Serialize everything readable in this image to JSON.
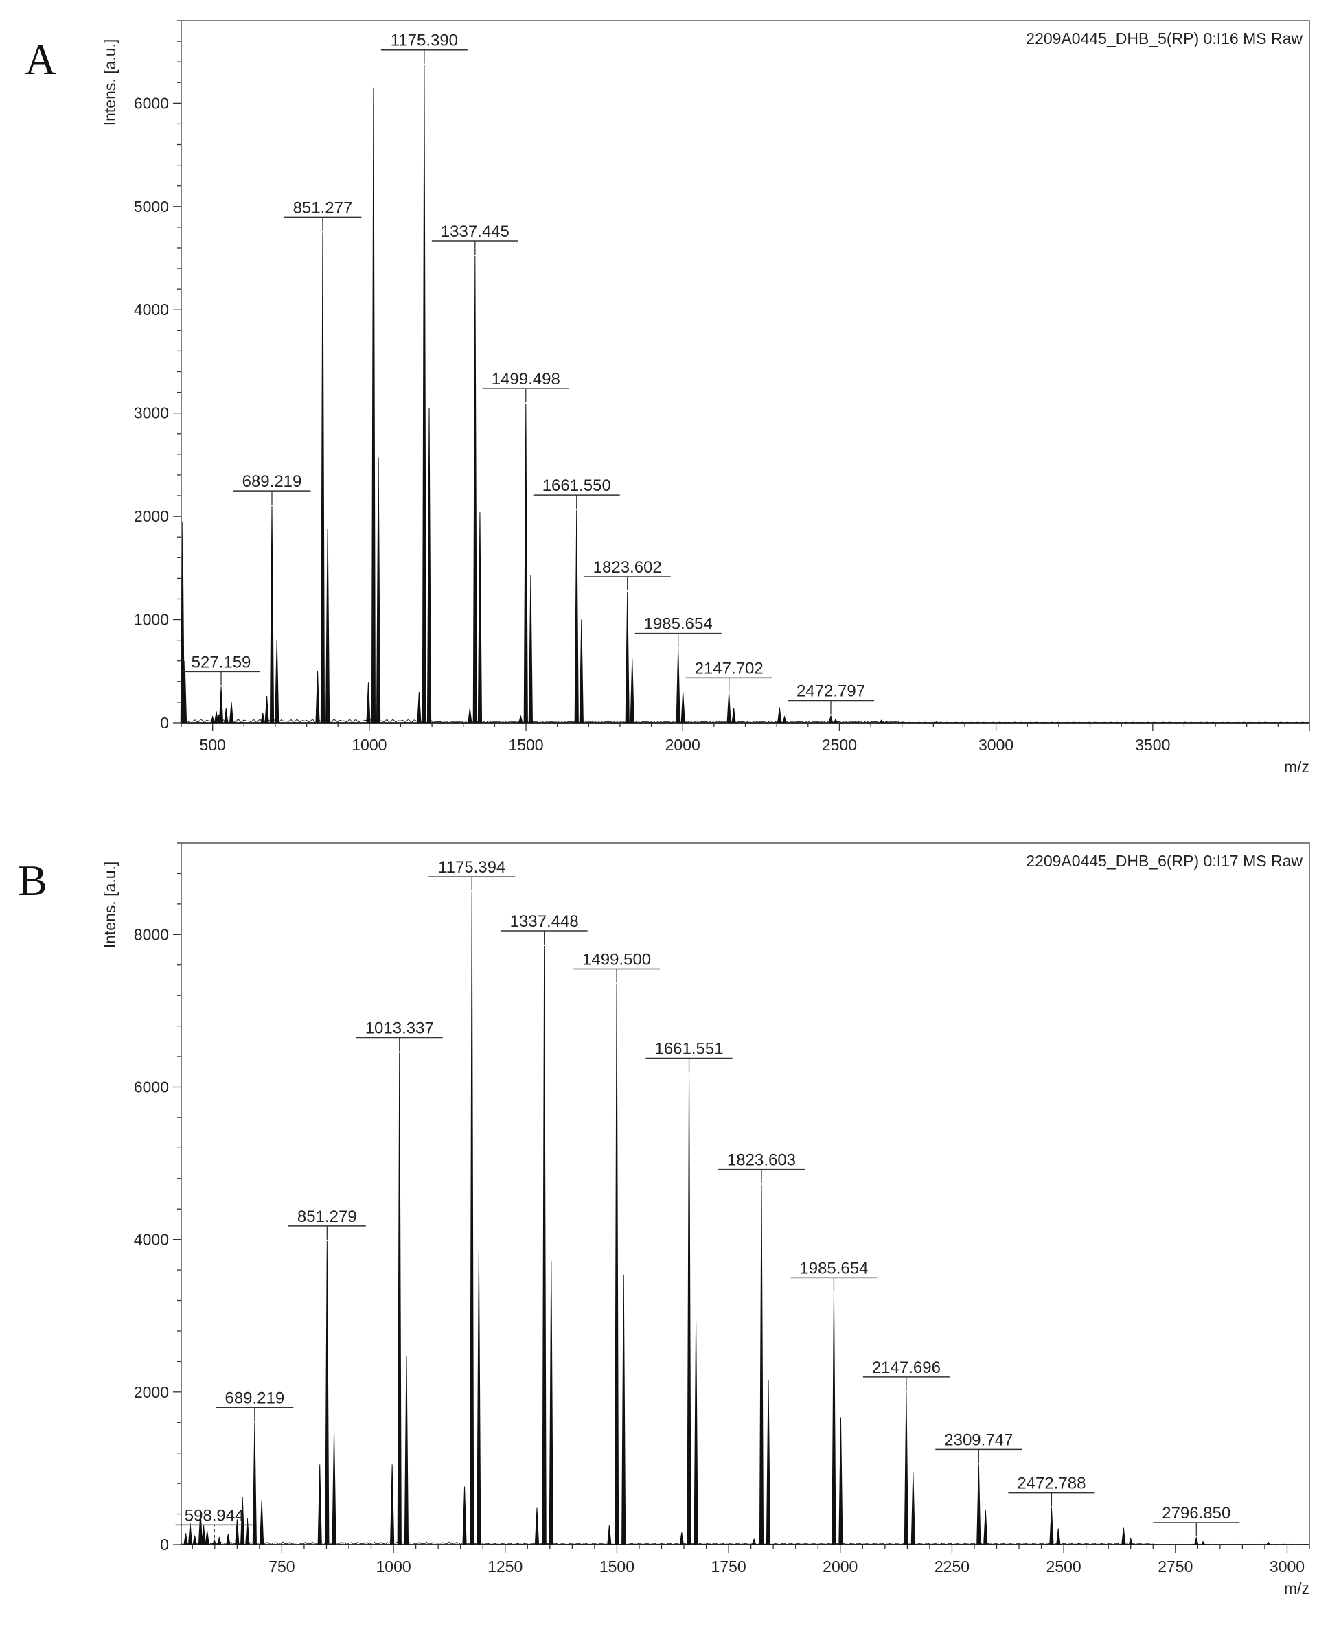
{
  "chart_data": [
    {
      "type": "line",
      "panel_label": "A",
      "source_label": "2209A0445_DHB_5(RP) 0:I16 MS Raw",
      "ylabel": "Intens. [a.u.]",
      "xlabel": "m/z",
      "xlim": [
        400,
        4000
      ],
      "ylim": [
        0,
        6800
      ],
      "xticks": [
        500,
        1000,
        1500,
        2000,
        2500,
        3000,
        3500
      ],
      "yticks": [
        0,
        1000,
        2000,
        3000,
        4000,
        5000,
        6000
      ],
      "peaks": [
        {
          "x": 404,
          "y": 1950
        },
        {
          "x": 411,
          "y": 600
        },
        {
          "x": 500,
          "y": 60
        },
        {
          "x": 512,
          "y": 110
        },
        {
          "x": 520,
          "y": 80
        },
        {
          "x": 527.159,
          "y": 350
        },
        {
          "x": 543,
          "y": 140
        },
        {
          "x": 560,
          "y": 200
        },
        {
          "x": 660,
          "y": 100
        },
        {
          "x": 673,
          "y": 260
        },
        {
          "x": 689.219,
          "y": 2100
        },
        {
          "x": 705,
          "y": 800
        },
        {
          "x": 835,
          "y": 500
        },
        {
          "x": 851.277,
          "y": 4750
        },
        {
          "x": 867,
          "y": 1880
        },
        {
          "x": 997,
          "y": 390
        },
        {
          "x": 1013.33,
          "y": 6150
        },
        {
          "x": 1029,
          "y": 2570
        },
        {
          "x": 1159,
          "y": 300
        },
        {
          "x": 1175.39,
          "y": 6370
        },
        {
          "x": 1191,
          "y": 3050
        },
        {
          "x": 1321,
          "y": 140
        },
        {
          "x": 1337.445,
          "y": 4520
        },
        {
          "x": 1353,
          "y": 2040
        },
        {
          "x": 1483,
          "y": 70
        },
        {
          "x": 1499.498,
          "y": 3090
        },
        {
          "x": 1515,
          "y": 1430
        },
        {
          "x": 1661.55,
          "y": 2060
        },
        {
          "x": 1677,
          "y": 1000
        },
        {
          "x": 1823.602,
          "y": 1270
        },
        {
          "x": 1839,
          "y": 620
        },
        {
          "x": 1985.654,
          "y": 720
        },
        {
          "x": 2001,
          "y": 300
        },
        {
          "x": 2147.702,
          "y": 290
        },
        {
          "x": 2163,
          "y": 140
        },
        {
          "x": 2309,
          "y": 150
        },
        {
          "x": 2325,
          "y": 60
        },
        {
          "x": 2472.797,
          "y": 70
        },
        {
          "x": 2488,
          "y": 35
        },
        {
          "x": 2634,
          "y": 25
        },
        {
          "x": 2650,
          "y": 15
        },
        {
          "x": 2810,
          "y": 10
        }
      ],
      "annotations": [
        {
          "x": 527.159,
          "y": 350,
          "label": "527.159"
        },
        {
          "x": 689.219,
          "y": 2100,
          "label": "689.219"
        },
        {
          "x": 851.277,
          "y": 4750,
          "label": "851.277"
        },
        {
          "x": 1175.39,
          "y": 6370,
          "label": "1175.390"
        },
        {
          "x": 1337.445,
          "y": 4520,
          "label": "1337.445"
        },
        {
          "x": 1499.498,
          "y": 3090,
          "label": "1499.498"
        },
        {
          "x": 1661.55,
          "y": 2060,
          "label": "1661.550"
        },
        {
          "x": 1823.602,
          "y": 1270,
          "label": "1823.602"
        },
        {
          "x": 1985.654,
          "y": 720,
          "label": "1985.654"
        },
        {
          "x": 2147.702,
          "y": 290,
          "label": "2147.702"
        },
        {
          "x": 2472.797,
          "y": 70,
          "label": "2472.797"
        }
      ]
    },
    {
      "type": "line",
      "panel_label": "B",
      "source_label": "2209A0445_DHB_6(RP) 0:I17 MS Raw",
      "ylabel": "Intens. [a.u.]",
      "xlabel": "m/z",
      "xlim": [
        525,
        3050
      ],
      "ylim": [
        0,
        9200
      ],
      "xticks": [
        750,
        1000,
        1250,
        1500,
        1750,
        2000,
        2250,
        2500,
        2750,
        3000
      ],
      "yticks": [
        0,
        2000,
        4000,
        6000,
        8000
      ],
      "peaks": [
        {
          "x": 535,
          "y": 150
        },
        {
          "x": 545,
          "y": 280
        },
        {
          "x": 555,
          "y": 120
        },
        {
          "x": 568,
          "y": 450
        },
        {
          "x": 575,
          "y": 250
        },
        {
          "x": 583,
          "y": 180
        },
        {
          "x": 598.944,
          "y": 60
        },
        {
          "x": 610,
          "y": 90
        },
        {
          "x": 630,
          "y": 140
        },
        {
          "x": 650,
          "y": 330
        },
        {
          "x": 662,
          "y": 630
        },
        {
          "x": 673,
          "y": 350
        },
        {
          "x": 689.219,
          "y": 1600
        },
        {
          "x": 705,
          "y": 580
        },
        {
          "x": 835,
          "y": 1050
        },
        {
          "x": 851.279,
          "y": 3980
        },
        {
          "x": 867,
          "y": 1480
        },
        {
          "x": 997,
          "y": 1050
        },
        {
          "x": 1013.337,
          "y": 6450
        },
        {
          "x": 1029,
          "y": 2470
        },
        {
          "x": 1159,
          "y": 760
        },
        {
          "x": 1175.394,
          "y": 8560
        },
        {
          "x": 1191,
          "y": 3830
        },
        {
          "x": 1321,
          "y": 480
        },
        {
          "x": 1337.448,
          "y": 7850
        },
        {
          "x": 1353,
          "y": 3720
        },
        {
          "x": 1483,
          "y": 250
        },
        {
          "x": 1499.5,
          "y": 7350
        },
        {
          "x": 1515,
          "y": 3540
        },
        {
          "x": 1645,
          "y": 160
        },
        {
          "x": 1661.551,
          "y": 6180
        },
        {
          "x": 1677,
          "y": 2930
        },
        {
          "x": 1807,
          "y": 70
        },
        {
          "x": 1823.603,
          "y": 4720
        },
        {
          "x": 1839,
          "y": 2150
        },
        {
          "x": 1985.654,
          "y": 3300
        },
        {
          "x": 2001,
          "y": 1670
        },
        {
          "x": 2147.696,
          "y": 2000
        },
        {
          "x": 2163,
          "y": 950
        },
        {
          "x": 2309.747,
          "y": 1050
        },
        {
          "x": 2325,
          "y": 460
        },
        {
          "x": 2472.788,
          "y": 480
        },
        {
          "x": 2488,
          "y": 210
        },
        {
          "x": 2634,
          "y": 220
        },
        {
          "x": 2650,
          "y": 80
        },
        {
          "x": 2796.85,
          "y": 90
        },
        {
          "x": 2812,
          "y": 40
        },
        {
          "x": 2958,
          "y": 30
        }
      ],
      "annotations": [
        {
          "x": 598.944,
          "y": 60,
          "label": "598.944",
          "dashed": true
        },
        {
          "x": 689.219,
          "y": 1600,
          "label": "689.219"
        },
        {
          "x": 851.279,
          "y": 3980,
          "label": "851.279"
        },
        {
          "x": 1013.337,
          "y": 6450,
          "label": "1013.337"
        },
        {
          "x": 1175.394,
          "y": 8560,
          "label": "1175.394"
        },
        {
          "x": 1337.448,
          "y": 7850,
          "label": "1337.448"
        },
        {
          "x": 1499.5,
          "y": 7350,
          "label": "1499.500"
        },
        {
          "x": 1661.551,
          "y": 6180,
          "label": "1661.551"
        },
        {
          "x": 1823.603,
          "y": 4720,
          "label": "1823.603"
        },
        {
          "x": 1985.654,
          "y": 3300,
          "label": "1985.654"
        },
        {
          "x": 2147.696,
          "y": 2000,
          "label": "2147.696"
        },
        {
          "x": 2309.747,
          "y": 1050,
          "label": "2309.747"
        },
        {
          "x": 2472.788,
          "y": 480,
          "label": "2472.788"
        },
        {
          "x": 2796.85,
          "y": 90,
          "label": "2796.850"
        }
      ]
    }
  ]
}
